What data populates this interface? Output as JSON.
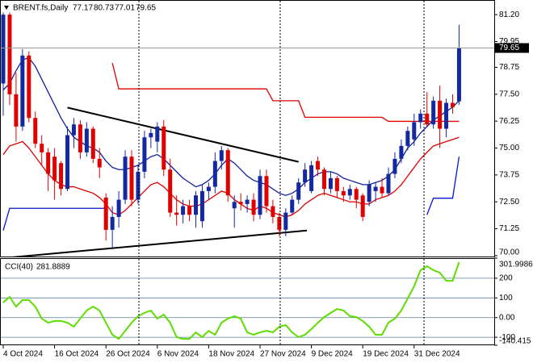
{
  "chart_data": [
    {
      "type": "candlestick",
      "title": "BRENT.fs,Daily",
      "categories": [
        "4 Oct 2024",
        null,
        null,
        null,
        null,
        null,
        null,
        null,
        "16 Oct 2024",
        null,
        null,
        null,
        null,
        null,
        null,
        null,
        "26 Oct 2024",
        null,
        null,
        null,
        null,
        null,
        null,
        null,
        "6 Nov 2024",
        null,
        null,
        null,
        null,
        null,
        null,
        null,
        "18 Nov 2024",
        null,
        null,
        null,
        null,
        null,
        null,
        null,
        "27 Nov 2024",
        null,
        null,
        null,
        null,
        null,
        null,
        null,
        "9 Dec 2024",
        null,
        null,
        null,
        null,
        null,
        null,
        null,
        "19 Dec 2024",
        null,
        null,
        null,
        null,
        null,
        null,
        null,
        "31 Dec 2024",
        null,
        null,
        null,
        null,
        null,
        null,
        null
      ],
      "open": [
        78.0,
        81.2,
        77.5,
        76.0,
        79.3,
        76.4,
        75.2,
        74.8,
        74.6,
        74.3,
        73.1,
        75.6,
        76.1,
        74.8,
        75.9,
        74.5,
        72.7,
        71.2,
        71.8,
        72.6,
        74.6,
        72.6,
        73.9,
        75.5,
        75.3,
        76.0,
        74.0,
        72.0,
        71.9,
        72.3,
        71.9,
        71.6,
        73.0,
        73.2,
        74.4,
        74.9,
        72.2,
        72.5,
        72.4,
        72.6,
        71.9,
        73.7,
        72.3,
        71.8,
        71.2,
        72.0,
        72.6,
        73.4,
        73.0,
        74.4,
        74.0,
        73.1,
        73.6,
        73.0,
        72.8,
        73.1,
        72.8,
        72.5,
        73.0,
        73.2,
        72.9,
        73.8,
        74.5,
        75.1,
        75.4,
        76.2,
        76.6,
        76.1,
        77.2,
        75.9,
        77.1,
        77.17
      ],
      "high": [
        81.3,
        81.3,
        78.5,
        79.6,
        79.5,
        76.7,
        75.6,
        75.0,
        75.0,
        74.4,
        76.0,
        76.4,
        76.3,
        76.2,
        76.0,
        75.0,
        72.9,
        72.3,
        73.0,
        74.9,
        74.9,
        74.2,
        75.8,
        75.9,
        76.2,
        76.3,
        74.5,
        72.8,
        72.6,
        72.6,
        73.0,
        73.3,
        73.4,
        74.8,
        75.1,
        75.0,
        72.8,
        72.9,
        72.8,
        72.9,
        74.0,
        74.0,
        72.6,
        72.0,
        72.2,
        72.8,
        73.6,
        74.3,
        74.4,
        74.6,
        74.1,
        73.9,
        73.7,
        73.2,
        73.3,
        73.2,
        72.9,
        73.5,
        73.4,
        73.6,
        74.1,
        74.8,
        75.4,
        76.0,
        76.6,
        76.8,
        77.6,
        77.4,
        77.9,
        77.3,
        77.5,
        80.73
      ],
      "low": [
        76.5,
        77.0,
        75.3,
        75.8,
        76.2,
        75.0,
        74.2,
        73.0,
        72.6,
        72.8,
        73.0,
        75.0,
        74.5,
        74.6,
        74.3,
        73.6,
        70.7,
        70.3,
        71.3,
        72.4,
        72.3,
        72.4,
        73.6,
        75.0,
        74.8,
        73.7,
        71.8,
        71.4,
        71.5,
        71.6,
        71.3,
        71.3,
        72.6,
        72.9,
        74.0,
        72.5,
        71.3,
        72.1,
        72.0,
        71.6,
        71.7,
        72.0,
        71.5,
        70.9,
        70.9,
        71.9,
        72.4,
        73.2,
        72.9,
        73.7,
        72.8,
        72.9,
        72.7,
        72.5,
        72.6,
        72.2,
        71.6,
        72.3,
        72.5,
        72.7,
        72.8,
        73.6,
        74.3,
        74.9,
        75.1,
        75.9,
        76.0,
        75.9,
        75.0,
        75.5,
        76.6,
        77.01
      ],
      "close": [
        81.2,
        77.5,
        76.0,
        79.3,
        76.4,
        75.2,
        74.8,
        73.8,
        73.5,
        73.1,
        75.6,
        76.1,
        74.8,
        75.9,
        74.5,
        74.1,
        71.2,
        71.8,
        72.6,
        74.6,
        72.6,
        73.9,
        75.5,
        75.7,
        76.0,
        74.0,
        72.0,
        71.9,
        72.3,
        71.9,
        72.8,
        73.0,
        73.2,
        74.4,
        74.9,
        72.8,
        72.5,
        72.4,
        72.6,
        71.9,
        73.7,
        72.3,
        71.8,
        71.2,
        72.0,
        72.6,
        73.4,
        74.0,
        74.2,
        74.0,
        73.1,
        73.6,
        73.0,
        72.8,
        73.1,
        72.6,
        71.8,
        73.3,
        73.2,
        72.9,
        73.8,
        74.5,
        75.1,
        75.8,
        76.2,
        76.6,
        76.1,
        77.2,
        75.9,
        77.1,
        76.9,
        79.65
      ],
      "up_color": "#1428a0",
      "down_color": "#e00000",
      "lines": [
        {
          "color": "#1020a0",
          "values": [
            77.7,
            78.0,
            78.6,
            79.1,
            79.2,
            78.8,
            78.2,
            77.6,
            77.0,
            76.4,
            75.9,
            75.5,
            75.3,
            75.1,
            75.0,
            74.8,
            74.4,
            74.1,
            74.0,
            74.0,
            74.1,
            74.2,
            74.4,
            74.6,
            74.7,
            74.5,
            74.2,
            73.9,
            73.6,
            73.4,
            73.2,
            73.3,
            73.5,
            73.8,
            74.2,
            74.5,
            74.3,
            74.0,
            73.7,
            73.5,
            73.4,
            73.3,
            73.1,
            72.9,
            72.8,
            72.9,
            73.1,
            73.4,
            73.6,
            73.8,
            73.9,
            73.9,
            73.8,
            73.6,
            73.5,
            73.4,
            73.3,
            73.3,
            73.4,
            73.5,
            73.7,
            74.0,
            74.5,
            75.0,
            75.3,
            75.7,
            76.0,
            76.3,
            76.5,
            76.7,
            76.9,
            77.2
          ]
        },
        {
          "color": "#e00000",
          "values": [
            74.7,
            75.1,
            75.2,
            75.3,
            75.0,
            74.6,
            74.2,
            73.8,
            73.5,
            73.3,
            73.2,
            73.2,
            73.1,
            73.0,
            72.9,
            72.7,
            72.4,
            72.0,
            71.9,
            72.1,
            72.4,
            72.7,
            73.0,
            73.3,
            73.4,
            73.2,
            72.9,
            72.6,
            72.4,
            72.3,
            72.3,
            72.4,
            72.6,
            72.8,
            73.0,
            72.9,
            72.6,
            72.4,
            72.2,
            72.1,
            72.3,
            72.2,
            72.0,
            71.9,
            71.8,
            71.9,
            72.1,
            72.4,
            72.6,
            72.8,
            72.9,
            72.8,
            72.7,
            72.6,
            72.5,
            72.5,
            72.4,
            72.4,
            72.6,
            72.7,
            72.8,
            73.0,
            73.3,
            73.7,
            74.1,
            74.5,
            74.8,
            75.1,
            75.2,
            75.3,
            75.4,
            75.5
          ]
        },
        {
          "color": "#e00000",
          "values": [
            null,
            null,
            null,
            null,
            null,
            null,
            null,
            null,
            null,
            null,
            null,
            null,
            null,
            null,
            null,
            null,
            null,
            78.95,
            77.75,
            77.75,
            77.75,
            77.75,
            77.75,
            77.75,
            77.75,
            77.75,
            77.75,
            77.75,
            77.75,
            77.75,
            77.75,
            77.75,
            77.75,
            77.75,
            77.75,
            77.75,
            77.75,
            77.75,
            77.75,
            77.75,
            77.75,
            77.75,
            77.2,
            77.2,
            77.2,
            77.2,
            77.2,
            76.43,
            76.43,
            76.43,
            76.43,
            76.43,
            76.43,
            76.43,
            76.43,
            76.43,
            76.43,
            76.43,
            76.43,
            76.43,
            76.24,
            76.24,
            76.24,
            76.24,
            76.24,
            76.24,
            76.24,
            76.24,
            76.24,
            76.24,
            76.24,
            76.24
          ]
        },
        {
          "color": "#0018d0",
          "values": [
            71.17,
            72.2,
            72.2,
            72.2,
            72.2,
            72.2,
            72.2,
            72.2,
            72.2,
            72.2,
            72.2,
            72.2,
            72.2,
            72.2,
            72.2,
            72.2,
            72.2,
            null,
            null,
            null,
            null,
            null,
            null,
            null,
            null,
            null,
            null,
            null,
            null,
            null,
            null,
            null,
            null,
            null,
            null,
            null,
            null,
            null,
            null,
            null,
            null,
            null,
            null,
            null,
            null,
            null,
            null,
            null,
            null,
            null,
            null,
            null,
            null,
            null,
            null,
            null,
            null,
            null,
            null,
            null,
            null,
            null,
            null,
            null,
            null,
            null,
            71.9,
            72.67,
            72.67,
            72.67,
            72.67,
            74.6
          ]
        }
      ],
      "trendlines": [
        {
          "color": "#000000",
          "x": [
            10,
            46
          ],
          "values": [
            76.88,
            74.36
          ]
        },
        {
          "color": "#000000",
          "x": [
            0.5,
            47.3
          ],
          "values": [
            69.9,
            71.17
          ]
        }
      ],
      "ylim": [
        69.96,
        81.88
      ],
      "yticks": [
        {
          "value": 81.2,
          "label": "81.20"
        },
        {
          "value": 79.95,
          "label": "79.95"
        },
        {
          "value": 78.75,
          "label": "78.75"
        },
        {
          "value": 77.5,
          "label": "77.50"
        },
        {
          "value": 76.25,
          "label": "76.25"
        },
        {
          "value": 75.0,
          "label": "75.00"
        },
        {
          "value": 73.75,
          "label": "73.75"
        },
        {
          "value": 72.5,
          "label": "72.50"
        },
        {
          "value": 71.25,
          "label": "71.25"
        },
        {
          "value": 70.0,
          "label": "70.00"
        }
      ]
    },
    {
      "type": "line",
      "title": "CCI(40)",
      "color": "#5fdc00",
      "values": [
        77,
        105,
        56,
        89,
        89,
        56,
        -5,
        -26,
        -17,
        -17,
        -26,
        -46,
        -5,
        36,
        56,
        36,
        -26,
        -87,
        -108,
        -67,
        -26,
        7,
        24,
        36,
        -5,
        15,
        -26,
        -99,
        -108,
        -108,
        -75,
        -99,
        -67,
        -87,
        -26,
        -5,
        7,
        -5,
        -75,
        -87,
        -75,
        -67,
        -75,
        -46,
        -38,
        -75,
        -99,
        -87,
        -58,
        -26,
        3,
        24,
        44,
        36,
        7,
        3,
        -17,
        -46,
        -87,
        -87,
        -26,
        -5,
        36,
        97,
        159,
        241,
        261,
        241,
        228,
        187,
        187,
        281.8889
      ],
      "ylim": [
        -140.415,
        301.9986
      ],
      "yticks": [
        301.9986,
        200,
        100,
        {
          "value": 0,
          "label": "0.00"
        },
        -100,
        -140.415
      ],
      "grid": true
    }
  ]
}
